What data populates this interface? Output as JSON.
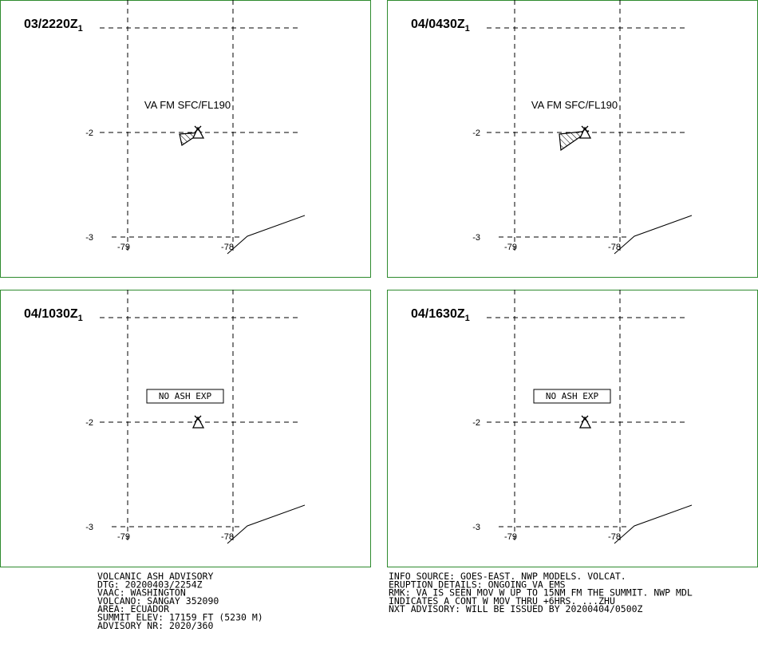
{
  "panels": [
    {
      "time": "03/2220Z",
      "sub": "1",
      "annotation": "VA FM SFC/FL190",
      "annotation_style": "plain",
      "ash_area": true,
      "lat_labels": [
        "-2",
        "-3"
      ],
      "lon_labels": [
        "-79",
        "-78"
      ]
    },
    {
      "time": "04/0430Z",
      "sub": "1",
      "annotation": "VA FM SFC/FL190",
      "annotation_style": "plain",
      "ash_area": true,
      "lat_labels": [
        "-2",
        "-3"
      ],
      "lon_labels": [
        "-79",
        "-78"
      ]
    },
    {
      "time": "04/1030Z",
      "sub": "1",
      "annotation": "NO ASH EXP",
      "annotation_style": "boxed",
      "ash_area": false,
      "lat_labels": [
        "-2",
        "-3"
      ],
      "lon_labels": [
        "-79",
        "-78"
      ]
    },
    {
      "time": "04/1630Z",
      "sub": "1",
      "annotation": "NO ASH EXP",
      "annotation_style": "boxed",
      "ash_area": false,
      "lat_labels": [
        "-2",
        "-3"
      ],
      "lon_labels": [
        "-79",
        "-78"
      ]
    }
  ],
  "footer": {
    "left": [
      "VOLCANIC ASH ADVISORY",
      "DTG: 20200403/2254Z",
      "VAAC: WASHINGTON",
      "VOLCANO: SANGAY 352090",
      "AREA: ECUADOR",
      "SUMMIT ELEV: 17159 FT (5230 M)",
      "ADVISORY NR: 2020/360"
    ],
    "right": [
      "INFO SOURCE: GOES-EAST. NWP MODELS. VOLCAT.",
      "ERUPTION DETAILS: ONGOING VA EMS",
      "RMK: VA IS SEEN MOV W UP TO 15NM FM THE SUMMIT. NWP MDL",
      "INDICATES A CONT W MOV THRU +6HRS. ...ZHU",
      "NXT ADVISORY: WILL BE ISSUED BY 20200404/0500Z"
    ]
  }
}
